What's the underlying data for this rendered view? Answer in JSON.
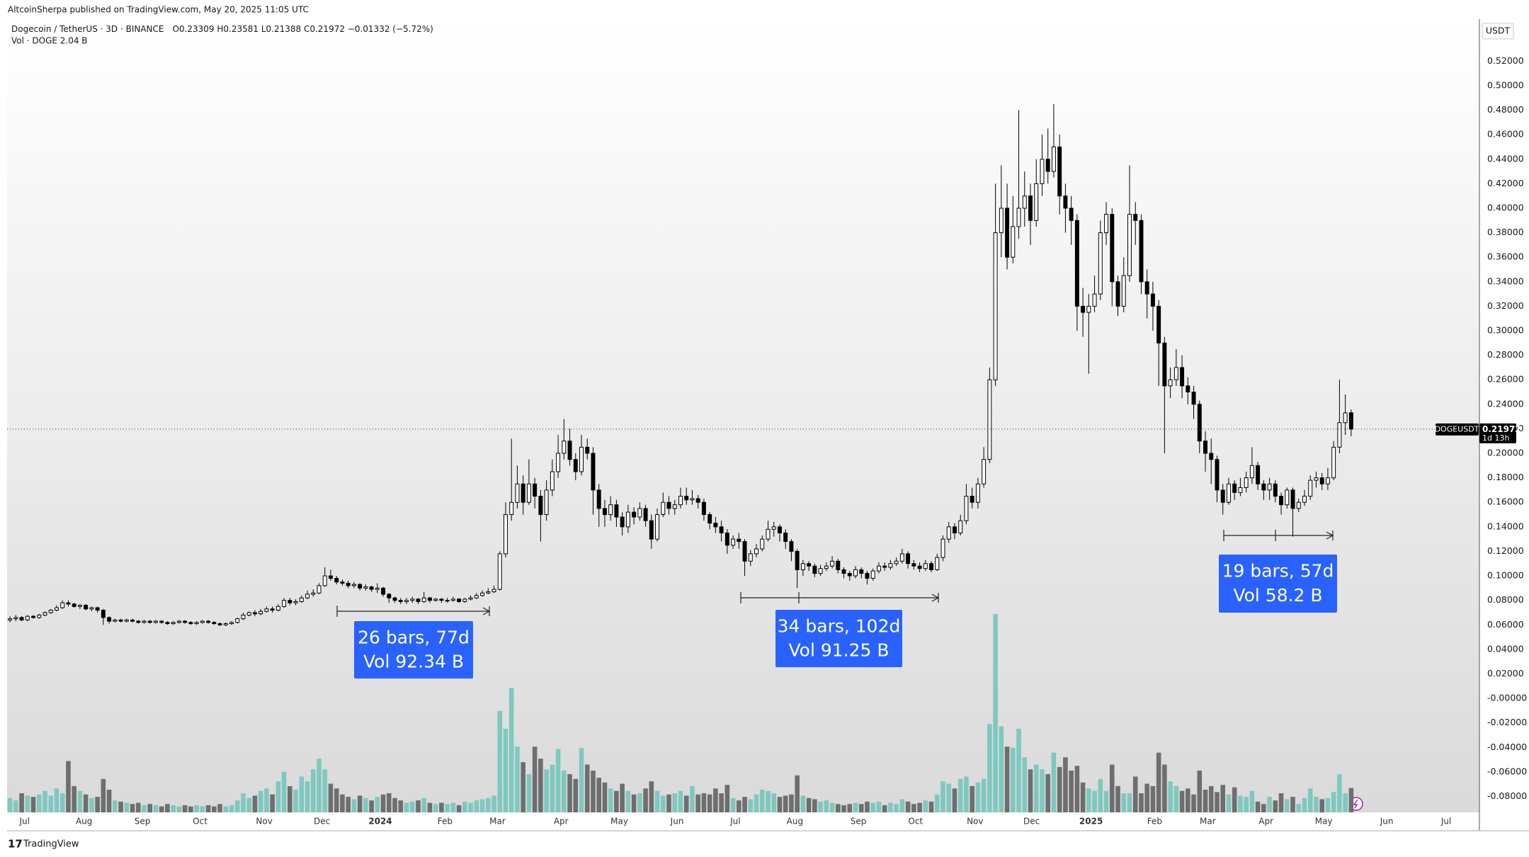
{
  "chart_data": {
    "type": "candlestick",
    "header": {
      "published": "AltcoinSherpa published on TradingView.com, May 20, 2025 11:05 UTC",
      "symbol": "Dogecoin / TetherUS · 3D · BINANCE",
      "ohlc": "O0.23309 H0.23581 L0.21388 C0.21972 −0.01332 (−5.72%)",
      "volume_legend": "Vol · DOGE 2.04 B"
    },
    "currency": "USDT",
    "price_label": {
      "symbol": "DOGEUSDT",
      "value": 0.21972,
      "countdown": "1d 13h"
    },
    "footer": "TradingView",
    "annotations": [
      {
        "lines": [
          "26 bars, 77d",
          "Vol 92.34 B"
        ]
      },
      {
        "lines": [
          "34 bars, 102d",
          "Vol 91.25 B"
        ]
      },
      {
        "lines": [
          "19 bars, 57d",
          "Vol 58.2 B"
        ]
      }
    ],
    "up_color": "#ffffff",
    "down_color": "#000000",
    "wick_color": "#000000",
    "volume_up_color": "#7fc8bf",
    "volume_down_color": "#6e6e6e",
    "grid": false,
    "xlim": [
      -0.5,
      252
    ],
    "xticks": [
      {
        "value": 2.5,
        "label": "Jul"
      },
      {
        "value": 12.7,
        "label": "Aug"
      },
      {
        "value": 22.7,
        "label": "Sep"
      },
      {
        "value": 32.6,
        "label": "Oct"
      },
      {
        "value": 43.6,
        "label": "Nov"
      },
      {
        "value": 53.5,
        "label": "Dec"
      },
      {
        "value": 63.5,
        "label": "2024"
      },
      {
        "value": 74.6,
        "label": "Feb"
      },
      {
        "value": 83.6,
        "label": "Mar"
      },
      {
        "value": 94.5,
        "label": "Apr"
      },
      {
        "value": 104.5,
        "label": "May"
      },
      {
        "value": 114.4,
        "label": "Jun"
      },
      {
        "value": 124.4,
        "label": "Jul"
      },
      {
        "value": 134.6,
        "label": "Aug"
      },
      {
        "value": 145.5,
        "label": "Sep"
      },
      {
        "value": 155.3,
        "label": "Oct"
      },
      {
        "value": 165.5,
        "label": "Nov"
      },
      {
        "value": 175.2,
        "label": "Dec"
      },
      {
        "value": 185.4,
        "label": "2025"
      },
      {
        "value": 196.3,
        "label": "Feb"
      },
      {
        "value": 205.4,
        "label": "Mar"
      },
      {
        "value": 215.4,
        "label": "Apr"
      },
      {
        "value": 225.3,
        "label": "May"
      },
      {
        "value": 236.1,
        "label": "Jun"
      },
      {
        "value": 246.3,
        "label": "Jul"
      }
    ],
    "ylim": [
      -0.093,
      0.554
    ],
    "yticks": [
      {
        "value": 0.52,
        "label": "0.52000"
      },
      {
        "value": 0.5,
        "label": "0.50000"
      },
      {
        "value": 0.48,
        "label": "0.48000"
      },
      {
        "value": 0.46,
        "label": "0.46000"
      },
      {
        "value": 0.44,
        "label": "0.44000"
      },
      {
        "value": 0.42,
        "label": "0.42000"
      },
      {
        "value": 0.4,
        "label": "0.40000"
      },
      {
        "value": 0.38,
        "label": "0.38000"
      },
      {
        "value": 0.36,
        "label": "0.36000"
      },
      {
        "value": 0.34,
        "label": "0.34000"
      },
      {
        "value": 0.32,
        "label": "0.32000"
      },
      {
        "value": 0.3,
        "label": "0.30000"
      },
      {
        "value": 0.28,
        "label": "0.28000"
      },
      {
        "value": 0.26,
        "label": "0.26000"
      },
      {
        "value": 0.24,
        "label": "0.24000"
      },
      {
        "value": 0.22,
        "label": "0.22000"
      },
      {
        "value": 0.2,
        "label": "0.20000"
      },
      {
        "value": 0.18,
        "label": "0.18000"
      },
      {
        "value": 0.16,
        "label": "0.16000"
      },
      {
        "value": 0.14,
        "label": "0.14000"
      },
      {
        "value": 0.12,
        "label": "0.12000"
      },
      {
        "value": 0.1,
        "label": "0.10000"
      },
      {
        "value": 0.08,
        "label": "0.08000"
      },
      {
        "value": 0.06,
        "label": "0.06000"
      },
      {
        "value": 0.04,
        "label": "0.04000"
      },
      {
        "value": 0.02,
        "label": "0.02000"
      },
      {
        "value": 0,
        "label": "-0.00000"
      },
      {
        "value": -0.02,
        "label": "-0.02000"
      },
      {
        "value": -0.04,
        "label": "-0.04000"
      },
      {
        "value": -0.06,
        "label": "-0.06000"
      },
      {
        "value": -0.08,
        "label": "-0.08000"
      }
    ],
    "open": [
      0.064,
      0.065,
      0.066,
      0.064,
      0.067,
      0.066,
      0.068,
      0.07,
      0.072,
      0.074,
      0.078,
      0.077,
      0.075,
      0.076,
      0.073,
      0.074,
      0.072,
      0.066,
      0.063,
      0.064,
      0.063,
      0.064,
      0.063,
      0.062,
      0.063,
      0.062,
      0.063,
      0.062,
      0.061,
      0.062,
      0.063,
      0.062,
      0.061,
      0.062,
      0.063,
      0.062,
      0.061,
      0.06,
      0.061,
      0.062,
      0.065,
      0.068,
      0.07,
      0.069,
      0.071,
      0.073,
      0.072,
      0.075,
      0.08,
      0.078,
      0.079,
      0.082,
      0.085,
      0.086,
      0.092,
      0.1,
      0.098,
      0.095,
      0.094,
      0.092,
      0.093,
      0.09,
      0.091,
      0.089,
      0.09,
      0.085,
      0.082,
      0.08,
      0.079,
      0.08,
      0.081,
      0.079,
      0.082,
      0.08,
      0.081,
      0.08,
      0.08,
      0.081,
      0.079,
      0.081,
      0.082,
      0.084,
      0.086,
      0.087,
      0.089,
      0.118,
      0.15,
      0.16,
      0.175,
      0.16,
      0.175,
      0.165,
      0.15,
      0.17,
      0.185,
      0.2,
      0.21,
      0.195,
      0.185,
      0.205,
      0.2,
      0.17,
      0.155,
      0.15,
      0.158,
      0.148,
      0.14,
      0.152,
      0.148,
      0.155,
      0.145,
      0.13,
      0.15,
      0.16,
      0.155,
      0.158,
      0.165,
      0.162,
      0.163,
      0.16,
      0.15,
      0.143,
      0.14,
      0.135,
      0.125,
      0.13,
      0.128,
      0.112,
      0.118,
      0.122,
      0.13,
      0.138,
      0.14,
      0.135,
      0.128,
      0.12,
      0.105,
      0.11,
      0.108,
      0.102,
      0.106,
      0.108,
      0.112,
      0.105,
      0.102,
      0.1,
      0.105,
      0.102,
      0.098,
      0.104,
      0.108,
      0.107,
      0.11,
      0.112,
      0.118,
      0.11,
      0.108,
      0.106,
      0.11,
      0.105,
      0.115,
      0.13,
      0.14,
      0.135,
      0.145,
      0.165,
      0.16,
      0.175,
      0.195,
      0.26,
      0.38,
      0.4,
      0.36,
      0.385,
      0.4,
      0.41,
      0.39,
      0.42,
      0.44,
      0.43,
      0.45,
      0.41,
      0.4,
      0.39,
      0.32,
      0.315,
      0.32,
      0.33,
      0.38,
      0.395,
      0.34,
      0.32,
      0.345,
      0.395,
      0.39,
      0.34,
      0.33,
      0.32,
      0.29,
      0.255,
      0.26,
      0.27,
      0.255,
      0.25,
      0.24,
      0.21,
      0.2,
      0.195,
      0.17,
      0.16,
      0.175,
      0.168,
      0.172,
      0.18,
      0.19,
      0.175,
      0.17,
      0.175,
      0.165,
      0.158,
      0.17,
      0.155,
      0.16,
      0.165,
      0.178,
      0.18,
      0.175,
      0.18,
      0.205,
      0.225,
      0.23309
    ],
    "high": [
      0.067,
      0.068,
      0.067,
      0.068,
      0.068,
      0.069,
      0.071,
      0.073,
      0.076,
      0.08,
      0.08,
      0.078,
      0.077,
      0.077,
      0.075,
      0.075,
      0.073,
      0.067,
      0.065,
      0.065,
      0.065,
      0.065,
      0.064,
      0.064,
      0.064,
      0.064,
      0.064,
      0.063,
      0.063,
      0.064,
      0.064,
      0.063,
      0.063,
      0.064,
      0.064,
      0.063,
      0.062,
      0.062,
      0.063,
      0.066,
      0.07,
      0.071,
      0.072,
      0.073,
      0.075,
      0.075,
      0.077,
      0.082,
      0.082,
      0.081,
      0.084,
      0.088,
      0.089,
      0.094,
      0.107,
      0.105,
      0.1,
      0.097,
      0.096,
      0.095,
      0.094,
      0.093,
      0.092,
      0.094,
      0.091,
      0.086,
      0.083,
      0.082,
      0.082,
      0.083,
      0.082,
      0.087,
      0.083,
      0.082,
      0.082,
      0.082,
      0.083,
      0.082,
      0.082,
      0.084,
      0.086,
      0.088,
      0.09,
      0.092,
      0.12,
      0.16,
      0.212,
      0.19,
      0.182,
      0.195,
      0.18,
      0.17,
      0.178,
      0.195,
      0.215,
      0.228,
      0.22,
      0.2,
      0.215,
      0.212,
      0.205,
      0.175,
      0.162,
      0.165,
      0.162,
      0.152,
      0.158,
      0.156,
      0.16,
      0.158,
      0.15,
      0.155,
      0.168,
      0.165,
      0.162,
      0.172,
      0.172,
      0.17,
      0.166,
      0.163,
      0.152,
      0.148,
      0.145,
      0.138,
      0.133,
      0.135,
      0.13,
      0.121,
      0.126,
      0.133,
      0.145,
      0.144,
      0.142,
      0.138,
      0.13,
      0.122,
      0.113,
      0.112,
      0.11,
      0.109,
      0.111,
      0.116,
      0.114,
      0.107,
      0.104,
      0.108,
      0.107,
      0.104,
      0.106,
      0.111,
      0.111,
      0.113,
      0.115,
      0.122,
      0.12,
      0.113,
      0.111,
      0.113,
      0.112,
      0.118,
      0.133,
      0.144,
      0.143,
      0.15,
      0.175,
      0.172,
      0.18,
      0.205,
      0.27,
      0.42,
      0.435,
      0.42,
      0.41,
      0.48,
      0.43,
      0.42,
      0.44,
      0.46,
      0.465,
      0.485,
      0.46,
      0.42,
      0.41,
      0.395,
      0.335,
      0.33,
      0.345,
      0.39,
      0.405,
      0.4,
      0.345,
      0.36,
      0.435,
      0.405,
      0.395,
      0.35,
      0.34,
      0.325,
      0.295,
      0.27,
      0.285,
      0.28,
      0.262,
      0.255,
      0.243,
      0.218,
      0.212,
      0.198,
      0.175,
      0.18,
      0.178,
      0.18,
      0.185,
      0.205,
      0.193,
      0.178,
      0.18,
      0.178,
      0.168,
      0.172,
      0.172,
      0.163,
      0.17,
      0.182,
      0.185,
      0.184,
      0.188,
      0.21,
      0.26,
      0.248,
      0.23581
    ],
    "low": [
      0.062,
      0.063,
      0.063,
      0.063,
      0.065,
      0.065,
      0.067,
      0.069,
      0.071,
      0.073,
      0.075,
      0.074,
      0.073,
      0.072,
      0.071,
      0.07,
      0.06,
      0.061,
      0.062,
      0.062,
      0.062,
      0.062,
      0.061,
      0.061,
      0.061,
      0.061,
      0.061,
      0.06,
      0.06,
      0.061,
      0.061,
      0.06,
      0.06,
      0.061,
      0.061,
      0.06,
      0.059,
      0.059,
      0.06,
      0.061,
      0.064,
      0.067,
      0.067,
      0.068,
      0.07,
      0.07,
      0.071,
      0.074,
      0.076,
      0.076,
      0.078,
      0.081,
      0.083,
      0.085,
      0.091,
      0.096,
      0.093,
      0.092,
      0.09,
      0.09,
      0.088,
      0.088,
      0.087,
      0.086,
      0.083,
      0.078,
      0.078,
      0.077,
      0.077,
      0.078,
      0.077,
      0.078,
      0.078,
      0.079,
      0.078,
      0.078,
      0.079,
      0.078,
      0.078,
      0.08,
      0.081,
      0.083,
      0.085,
      0.086,
      0.088,
      0.115,
      0.145,
      0.155,
      0.15,
      0.158,
      0.155,
      0.128,
      0.145,
      0.165,
      0.18,
      0.195,
      0.19,
      0.178,
      0.182,
      0.195,
      0.15,
      0.14,
      0.14,
      0.145,
      0.14,
      0.133,
      0.135,
      0.142,
      0.145,
      0.14,
      0.122,
      0.128,
      0.148,
      0.15,
      0.15,
      0.155,
      0.158,
      0.158,
      0.155,
      0.145,
      0.138,
      0.135,
      0.128,
      0.118,
      0.122,
      0.122,
      0.1,
      0.108,
      0.115,
      0.12,
      0.128,
      0.132,
      0.128,
      0.122,
      0.112,
      0.09,
      0.1,
      0.104,
      0.099,
      0.1,
      0.104,
      0.106,
      0.102,
      0.098,
      0.096,
      0.098,
      0.098,
      0.093,
      0.096,
      0.102,
      0.104,
      0.105,
      0.108,
      0.11,
      0.106,
      0.105,
      0.103,
      0.104,
      0.103,
      0.104,
      0.112,
      0.127,
      0.13,
      0.133,
      0.142,
      0.155,
      0.155,
      0.172,
      0.192,
      0.255,
      0.36,
      0.35,
      0.355,
      0.375,
      0.385,
      0.37,
      0.385,
      0.41,
      0.42,
      0.425,
      0.395,
      0.38,
      0.37,
      0.3,
      0.295,
      0.265,
      0.315,
      0.325,
      0.37,
      0.32,
      0.312,
      0.315,
      0.34,
      0.37,
      0.33,
      0.31,
      0.3,
      0.255,
      0.2,
      0.245,
      0.255,
      0.245,
      0.24,
      0.228,
      0.2,
      0.185,
      0.175,
      0.16,
      0.15,
      0.158,
      0.162,
      0.165,
      0.168,
      0.175,
      0.17,
      0.162,
      0.162,
      0.16,
      0.15,
      0.155,
      0.132,
      0.152,
      0.157,
      0.162,
      0.172,
      0.17,
      0.17,
      0.178,
      0.2,
      0.215,
      0.21388
    ],
    "close": [
      0.065,
      0.066,
      0.064,
      0.067,
      0.066,
      0.068,
      0.07,
      0.072,
      0.074,
      0.078,
      0.077,
      0.075,
      0.076,
      0.073,
      0.074,
      0.072,
      0.066,
      0.063,
      0.064,
      0.063,
      0.064,
      0.063,
      0.062,
      0.063,
      0.062,
      0.063,
      0.062,
      0.061,
      0.062,
      0.063,
      0.062,
      0.061,
      0.062,
      0.063,
      0.062,
      0.061,
      0.06,
      0.061,
      0.062,
      0.065,
      0.068,
      0.07,
      0.069,
      0.071,
      0.073,
      0.072,
      0.075,
      0.08,
      0.078,
      0.079,
      0.082,
      0.085,
      0.086,
      0.092,
      0.1,
      0.098,
      0.095,
      0.094,
      0.092,
      0.093,
      0.09,
      0.091,
      0.089,
      0.09,
      0.085,
      0.082,
      0.08,
      0.079,
      0.08,
      0.081,
      0.079,
      0.082,
      0.08,
      0.081,
      0.08,
      0.08,
      0.081,
      0.079,
      0.081,
      0.082,
      0.084,
      0.086,
      0.087,
      0.089,
      0.118,
      0.15,
      0.16,
      0.175,
      0.16,
      0.175,
      0.165,
      0.15,
      0.17,
      0.185,
      0.2,
      0.21,
      0.195,
      0.185,
      0.205,
      0.2,
      0.17,
      0.155,
      0.15,
      0.158,
      0.148,
      0.14,
      0.152,
      0.148,
      0.155,
      0.145,
      0.13,
      0.15,
      0.16,
      0.155,
      0.158,
      0.165,
      0.162,
      0.163,
      0.16,
      0.15,
      0.143,
      0.14,
      0.135,
      0.125,
      0.13,
      0.128,
      0.112,
      0.118,
      0.122,
      0.13,
      0.138,
      0.14,
      0.135,
      0.128,
      0.12,
      0.105,
      0.11,
      0.108,
      0.102,
      0.106,
      0.108,
      0.112,
      0.105,
      0.102,
      0.1,
      0.105,
      0.102,
      0.098,
      0.104,
      0.108,
      0.107,
      0.11,
      0.112,
      0.118,
      0.11,
      0.108,
      0.106,
      0.11,
      0.105,
      0.115,
      0.13,
      0.14,
      0.135,
      0.145,
      0.165,
      0.16,
      0.175,
      0.195,
      0.26,
      0.38,
      0.4,
      0.36,
      0.385,
      0.4,
      0.41,
      0.39,
      0.42,
      0.44,
      0.43,
      0.45,
      0.41,
      0.4,
      0.39,
      0.32,
      0.315,
      0.32,
      0.33,
      0.38,
      0.395,
      0.34,
      0.32,
      0.345,
      0.395,
      0.39,
      0.34,
      0.33,
      0.32,
      0.29,
      0.255,
      0.26,
      0.27,
      0.255,
      0.25,
      0.24,
      0.21,
      0.2,
      0.195,
      0.17,
      0.16,
      0.175,
      0.168,
      0.172,
      0.18,
      0.19,
      0.175,
      0.17,
      0.175,
      0.165,
      0.158,
      0.17,
      0.155,
      0.16,
      0.165,
      0.178,
      0.18,
      0.175,
      0.18,
      0.205,
      0.225,
      0.233,
      0.21972
    ],
    "volume": [
      1.2,
      1.0,
      1.6,
      1.4,
      1.3,
      1.5,
      1.8,
      1.4,
      2.0,
      1.6,
      4.3,
      2.2,
      1.8,
      1.5,
      1.2,
      1.3,
      2.8,
      1.9,
      1.0,
      0.9,
      0.8,
      0.7,
      0.8,
      0.6,
      0.7,
      0.6,
      0.5,
      0.7,
      0.6,
      0.5,
      0.6,
      0.5,
      0.6,
      0.5,
      0.6,
      0.5,
      0.7,
      0.5,
      0.6,
      1.0,
      1.6,
      1.2,
      1.4,
      1.8,
      2.0,
      1.5,
      2.6,
      3.4,
      2.2,
      1.9,
      3.0,
      2.6,
      3.6,
      4.5,
      3.6,
      2.4,
      2.0,
      1.5,
      1.3,
      1.1,
      1.4,
      1.2,
      1.0,
      1.3,
      1.5,
      1.6,
      1.2,
      1.0,
      0.8,
      0.9,
      1.0,
      1.2,
      0.8,
      0.7,
      0.8,
      0.7,
      0.8,
      0.6,
      0.9,
      0.8,
      1.0,
      1.1,
      1.2,
      1.4,
      8.5,
      7.0,
      10.4,
      5.5,
      4.2,
      3.2,
      5.5,
      4.5,
      3.6,
      4.0,
      5.3,
      3.5,
      3.2,
      2.8,
      5.4,
      4.0,
      3.5,
      2.9,
      2.5,
      2.0,
      1.8,
      2.4,
      1.8,
      1.5,
      1.6,
      2.0,
      2.6,
      1.8,
      1.4,
      1.5,
      1.6,
      1.8,
      1.4,
      2.2,
      1.5,
      1.6,
      1.5,
      2.0,
      1.6,
      2.3,
      1.2,
      1.0,
      1.3,
      1.1,
      1.5,
      1.9,
      1.8,
      1.6,
      1.3,
      1.4,
      1.5,
      3.1,
      1.4,
      1.2,
      1.1,
      0.9,
      1.0,
      0.8,
      0.7,
      0.6,
      0.7,
      0.8,
      0.7,
      0.9,
      0.8,
      0.9,
      0.6,
      0.8,
      0.7,
      1.1,
      0.9,
      0.7,
      0.8,
      1.0,
      0.9,
      1.5,
      2.6,
      2.4,
      2.0,
      2.8,
      3.0,
      2.2,
      2.5,
      2.8,
      7.4,
      16.6,
      7.2,
      5.5,
      5.4,
      7.0,
      4.6,
      3.6,
      4.0,
      3.6,
      3.2,
      5.0,
      3.8,
      4.6,
      3.5,
      3.9,
      2.5,
      2.0,
      1.8,
      2.8,
      1.8,
      4.0,
      2.2,
      1.6,
      1.6,
      3.0,
      1.6,
      2.4,
      2.2,
      5.0,
      4.0,
      2.6,
      2.2,
      1.8,
      2.0,
      1.5,
      3.5,
      1.9,
      2.2,
      1.7,
      2.3,
      1.5,
      2.1,
      1.4,
      1.3,
      1.8,
      0.9,
      0.7,
      1.3,
      1.0,
      1.6,
      1.1,
      1.3,
      0.7,
      1.2,
      2.0,
      1.3,
      1.1,
      1.2,
      1.7,
      3.2,
      1.6,
      2.04
    ]
  }
}
